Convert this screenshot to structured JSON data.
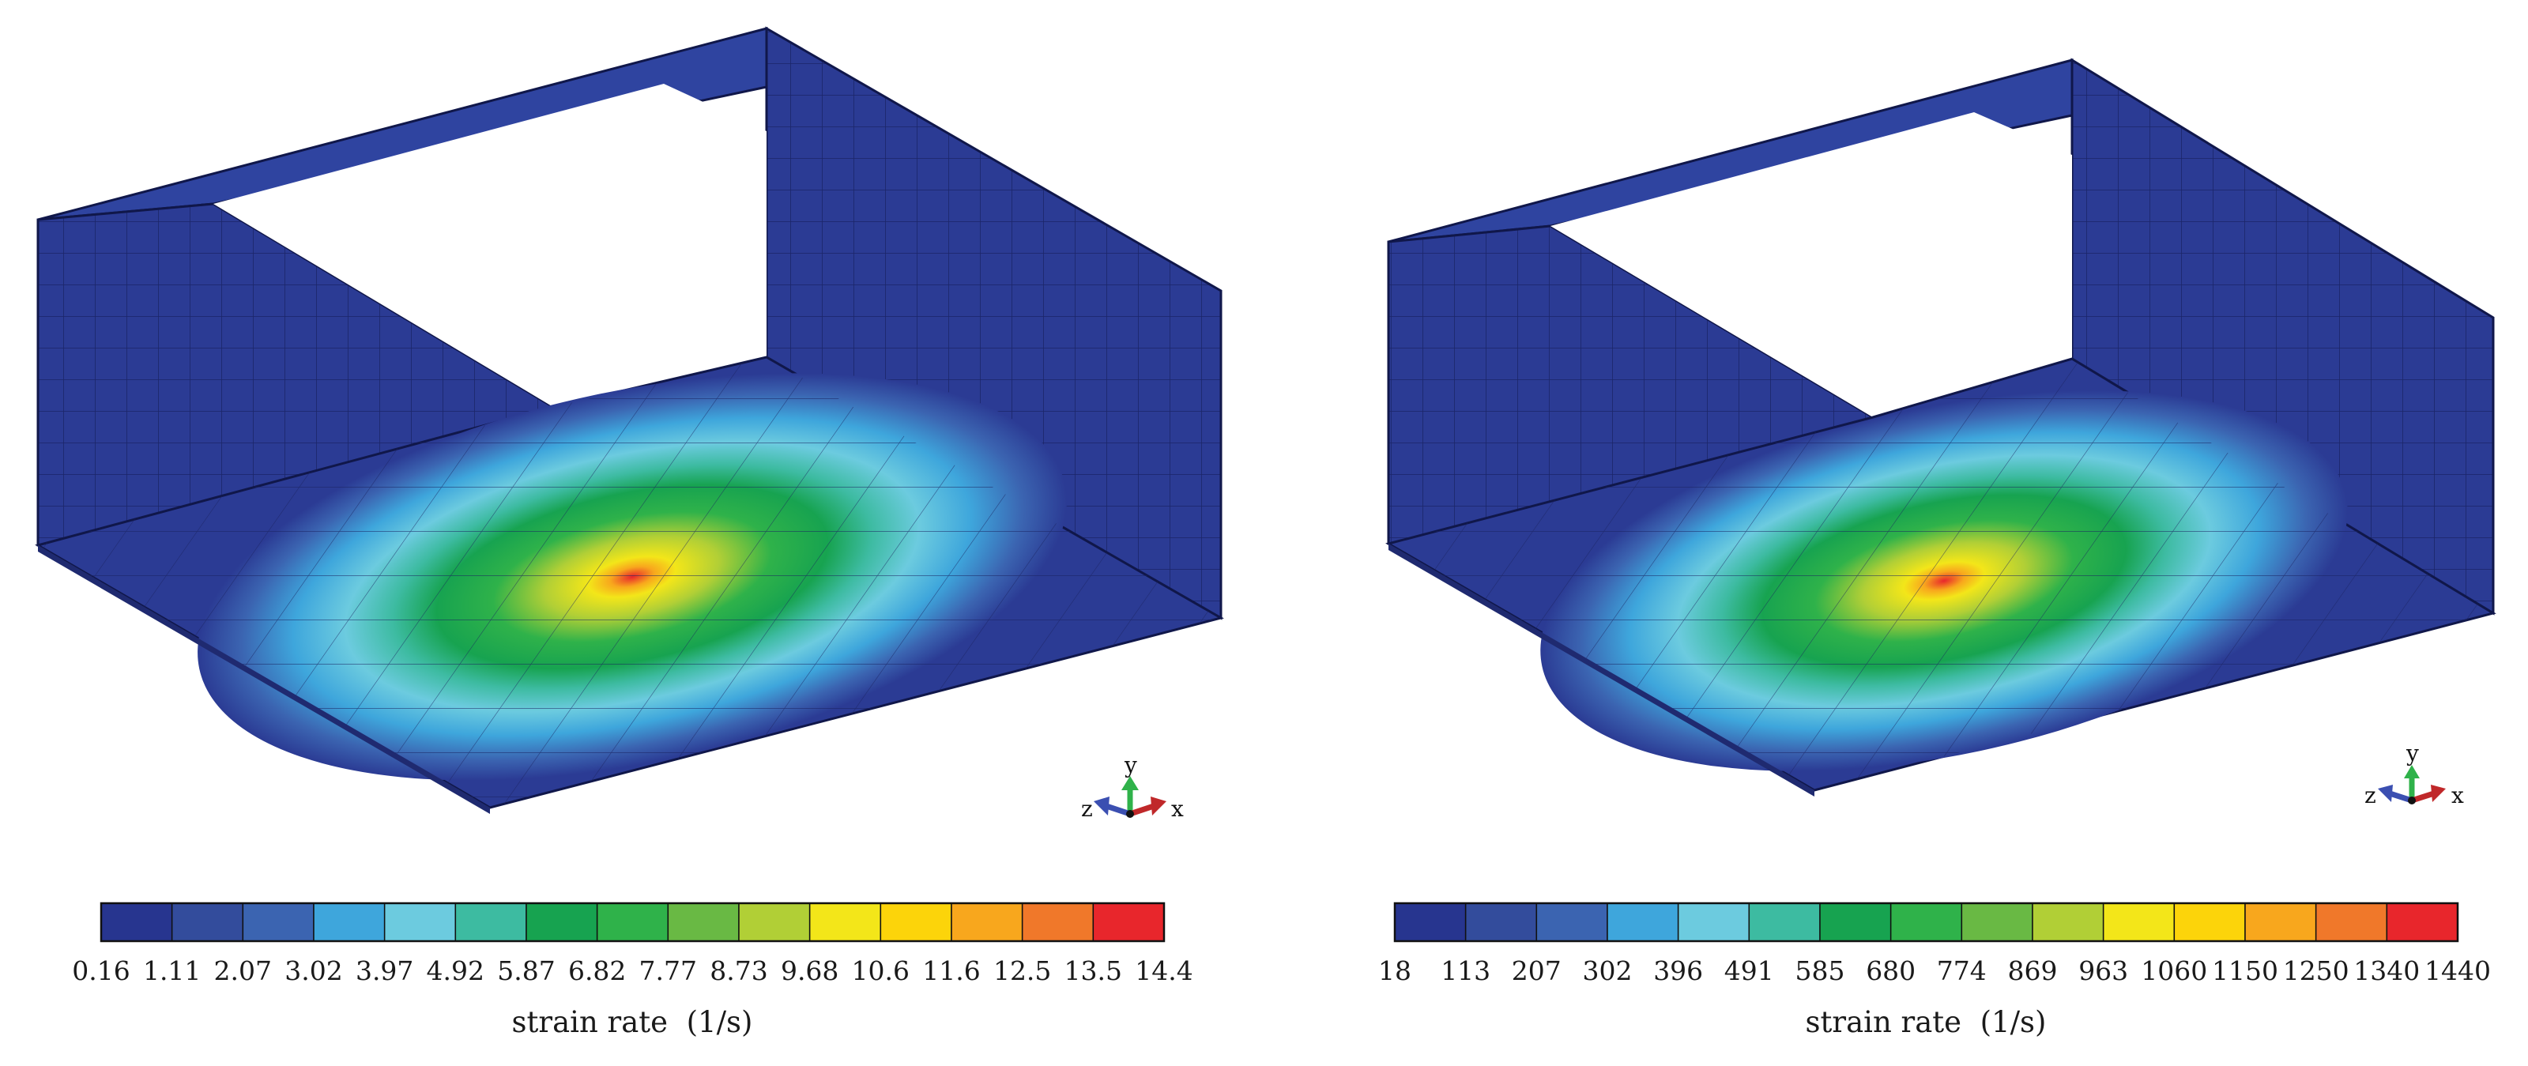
{
  "figure": {
    "panels": [
      {
        "colorbar": {
          "ticks": [
            "0.16",
            "1.11",
            "2.07",
            "3.02",
            "3.97",
            "4.92",
            "5.87",
            "6.82",
            "7.77",
            "8.73",
            "9.68",
            "10.6",
            "11.6",
            "12.5",
            "13.5",
            "14.4"
          ],
          "label": "strain rate",
          "unit": "(1/s)"
        },
        "triad": {
          "x": "x",
          "y": "y",
          "z": "z"
        }
      },
      {
        "colorbar": {
          "ticks": [
            "18",
            "113",
            "207",
            "302",
            "396",
            "491",
            "585",
            "680",
            "774",
            "869",
            "963",
            "1060",
            "1150",
            "1250",
            "1340",
            "1440"
          ],
          "label": "strain rate",
          "unit": "(1/s)"
        },
        "triad": {
          "x": "x",
          "y": "y",
          "z": "z"
        }
      }
    ]
  },
  "palette": [
    "#27358f",
    "#334c9c",
    "#3b64b1",
    "#3ea6dc",
    "#6ccbdf",
    "#3dbba1",
    "#17a350",
    "#2fb24a",
    "#69b944",
    "#b1cf36",
    "#f3e619",
    "#fcd40a",
    "#f8a71d",
    "#f0782a",
    "#e8262c"
  ],
  "mesh": {
    "wall_color": "#2b3b94",
    "grid_color": "#10174a"
  }
}
